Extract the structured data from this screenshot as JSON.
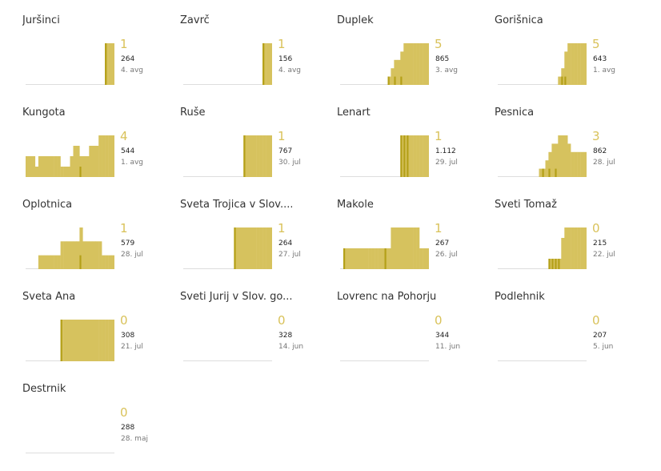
{
  "colors": {
    "bar_light": "#d6c25e",
    "bar_dark": "#b4a018",
    "baseline": "#dddddd",
    "accent_text": "#d9c25a"
  },
  "chart_data": [
    {
      "type": "bar",
      "title": "Juršinci",
      "active": 1,
      "total": 264,
      "date": "4. avg",
      "values_total": [
        0,
        0,
        0,
        0,
        0,
        0,
        0,
        0,
        0,
        0,
        0,
        0,
        0,
        0,
        0,
        0,
        0,
        0,
        0,
        0,
        0,
        0,
        0,
        0,
        0,
        1,
        1,
        1
      ],
      "values_active": [
        0,
        0,
        0,
        0,
        0,
        0,
        0,
        0,
        0,
        0,
        0,
        0,
        0,
        0,
        0,
        0,
        0,
        0,
        0,
        0,
        0,
        0,
        0,
        0,
        0,
        1,
        0,
        0
      ]
    },
    {
      "type": "bar",
      "title": "Zavrč",
      "active": 1,
      "total": 156,
      "date": "4. avg",
      "values_total": [
        0,
        0,
        0,
        0,
        0,
        0,
        0,
        0,
        0,
        0,
        0,
        0,
        0,
        0,
        0,
        0,
        0,
        0,
        0,
        0,
        0,
        0,
        0,
        0,
        0,
        1,
        1,
        1
      ],
      "values_active": [
        0,
        0,
        0,
        0,
        0,
        0,
        0,
        0,
        0,
        0,
        0,
        0,
        0,
        0,
        0,
        0,
        0,
        0,
        0,
        0,
        0,
        0,
        0,
        0,
        1,
        1,
        0,
        0
      ]
    },
    {
      "type": "bar",
      "title": "Duplek",
      "active": 5,
      "total": 865,
      "date": "3. avg",
      "values_total": [
        0,
        0,
        0,
        0,
        0,
        0,
        0,
        0,
        0,
        0,
        0,
        0,
        0,
        0,
        0,
        1,
        2,
        3,
        3,
        4,
        5,
        5,
        5,
        5,
        5,
        5,
        5,
        5
      ],
      "values_active": [
        0,
        0,
        0,
        0,
        0,
        0,
        0,
        0,
        0,
        0,
        0,
        0,
        0,
        0,
        0,
        1,
        0,
        1,
        0,
        1,
        0,
        0,
        0,
        0,
        0,
        0,
        0,
        0
      ]
    },
    {
      "type": "bar",
      "title": "Gorišnica",
      "active": 5,
      "total": 643,
      "date": "1. avg",
      "values_total": [
        0,
        0,
        0,
        0,
        0,
        0,
        0,
        0,
        0,
        0,
        0,
        0,
        0,
        0,
        0,
        0,
        0,
        0,
        0,
        1,
        2,
        4,
        5,
        5,
        5,
        5,
        5,
        5
      ],
      "values_active": [
        0,
        0,
        0,
        0,
        0,
        0,
        0,
        0,
        0,
        0,
        0,
        0,
        0,
        0,
        0,
        0,
        0,
        0,
        0,
        0,
        1,
        1,
        0,
        0,
        0,
        0,
        0,
        0
      ]
    },
    {
      "type": "bar",
      "title": "Kungota",
      "active": 4,
      "total": 544,
      "date": "1. avg",
      "values_total": [
        2,
        2,
        2,
        1,
        2,
        2,
        2,
        2,
        2,
        2,
        2,
        1,
        1,
        1,
        2,
        3,
        3,
        2,
        2,
        2,
        3,
        3,
        3,
        4,
        4,
        4,
        4,
        4
      ],
      "values_active": [
        0,
        0,
        0,
        0,
        0,
        0,
        0,
        0,
        0,
        0,
        0,
        0,
        0,
        0,
        0,
        0,
        0,
        1,
        0,
        0,
        0,
        0,
        0,
        0,
        0,
        0,
        0,
        0
      ]
    },
    {
      "type": "bar",
      "title": "Ruše",
      "active": 1,
      "total": 767,
      "date": "30. jul",
      "values_total": [
        0,
        0,
        0,
        0,
        0,
        0,
        0,
        0,
        0,
        0,
        0,
        0,
        0,
        0,
        0,
        0,
        0,
        0,
        0,
        1,
        1,
        1,
        1,
        1,
        1,
        1,
        1,
        1
      ],
      "values_active": [
        0,
        0,
        0,
        0,
        0,
        0,
        0,
        0,
        0,
        0,
        0,
        0,
        0,
        0,
        0,
        0,
        0,
        0,
        0,
        1,
        0,
        0,
        0,
        0,
        0,
        0,
        0,
        0
      ]
    },
    {
      "type": "bar",
      "title": "Lenart",
      "active": 1,
      "total": "1.112",
      "date": "29. jul",
      "values_total": [
        0,
        0,
        0,
        0,
        0,
        0,
        0,
        0,
        0,
        0,
        0,
        0,
        0,
        0,
        0,
        0,
        0,
        0,
        0,
        1,
        1,
        1,
        1,
        1,
        1,
        1,
        1,
        1
      ],
      "values_active": [
        0,
        0,
        0,
        0,
        0,
        0,
        0,
        0,
        0,
        0,
        0,
        0,
        0,
        0,
        0,
        0,
        0,
        0,
        0,
        1,
        1,
        1,
        0,
        0,
        0,
        0,
        0,
        0
      ]
    },
    {
      "type": "bar",
      "title": "Pesnica",
      "active": 3,
      "total": 862,
      "date": "28. jul",
      "values_total": [
        0,
        0,
        0,
        0,
        0,
        0,
        0,
        0,
        0,
        0,
        0,
        0,
        0,
        1,
        1,
        2,
        3,
        4,
        4,
        5,
        5,
        5,
        4,
        3,
        3,
        3,
        3,
        3
      ],
      "values_active": [
        0,
        0,
        0,
        0,
        0,
        0,
        0,
        0,
        0,
        0,
        0,
        0,
        0,
        0,
        1,
        0,
        1,
        0,
        1,
        0,
        0,
        0,
        0,
        0,
        0,
        0,
        0,
        0
      ]
    },
    {
      "type": "bar",
      "title": "Oplotnica",
      "active": 1,
      "total": 579,
      "date": "28. jul",
      "values_total": [
        0,
        0,
        0,
        0,
        1,
        1,
        1,
        1,
        1,
        1,
        1,
        2,
        2,
        2,
        2,
        2,
        2,
        3,
        2,
        2,
        2,
        2,
        2,
        2,
        1,
        1,
        1,
        1
      ],
      "values_active": [
        0,
        0,
        0,
        0,
        0,
        0,
        0,
        0,
        0,
        0,
        0,
        0,
        0,
        0,
        0,
        0,
        0,
        1,
        0,
        0,
        0,
        0,
        0,
        0,
        0,
        0,
        0,
        0
      ]
    },
    {
      "type": "bar",
      "title": "Sveta Trojica v Slov....",
      "active": 1,
      "total": 264,
      "date": "27. jul",
      "values_total": [
        0,
        0,
        0,
        0,
        0,
        0,
        0,
        0,
        0,
        0,
        0,
        0,
        0,
        0,
        0,
        0,
        1,
        1,
        1,
        1,
        1,
        1,
        1,
        1,
        1,
        1,
        1,
        1
      ],
      "values_active": [
        0,
        0,
        0,
        0,
        0,
        0,
        0,
        0,
        0,
        0,
        0,
        0,
        0,
        0,
        0,
        0,
        1,
        0,
        0,
        0,
        0,
        0,
        0,
        0,
        0,
        0,
        0,
        0
      ]
    },
    {
      "type": "bar",
      "title": "Makole",
      "active": 1,
      "total": 267,
      "date": "26. jul",
      "values_total": [
        0,
        1,
        1,
        1,
        1,
        1,
        1,
        1,
        1,
        1,
        1,
        1,
        1,
        1,
        1,
        1,
        2,
        2,
        2,
        2,
        2,
        2,
        2,
        2,
        2,
        1,
        1,
        1
      ],
      "values_active": [
        0,
        1,
        0,
        0,
        0,
        0,
        0,
        0,
        0,
        0,
        0,
        0,
        0,
        0,
        1,
        0,
        0,
        0,
        0,
        0,
        0,
        0,
        0,
        0,
        0,
        0,
        0,
        0
      ]
    },
    {
      "type": "bar",
      "title": "Sveti Tomaž",
      "active": 0,
      "total": 215,
      "date": "22. jul",
      "values_total": [
        0,
        0,
        0,
        0,
        0,
        0,
        0,
        0,
        0,
        0,
        0,
        0,
        0,
        0,
        0,
        0,
        1,
        1,
        1,
        1,
        3,
        4,
        4,
        4,
        4,
        4,
        4,
        4
      ],
      "values_active": [
        0,
        0,
        0,
        0,
        0,
        0,
        0,
        0,
        0,
        0,
        0,
        0,
        0,
        0,
        0,
        0,
        1,
        1,
        1,
        1,
        0,
        0,
        0,
        0,
        0,
        0,
        0,
        0
      ]
    },
    {
      "type": "bar",
      "title": "Sveta Ana",
      "active": 0,
      "total": 308,
      "date": "21. jul",
      "values_total": [
        0,
        0,
        0,
        0,
        0,
        0,
        0,
        0,
        0,
        0,
        0,
        1,
        1,
        1,
        1,
        1,
        1,
        1,
        1,
        1,
        1,
        1,
        1,
        1,
        1,
        1,
        1,
        1
      ],
      "values_active": [
        0,
        0,
        0,
        0,
        0,
        0,
        0,
        0,
        0,
        0,
        0,
        1,
        0,
        0,
        0,
        0,
        0,
        0,
        0,
        0,
        0,
        0,
        0,
        0,
        0,
        0,
        0,
        0
      ]
    },
    {
      "type": "bar",
      "title": "Sveti Jurij v Slov. go...",
      "active": 0,
      "total": 328,
      "date": "14. jun",
      "values_total": [],
      "values_active": []
    },
    {
      "type": "bar",
      "title": "Lovrenc na Pohorju",
      "active": 0,
      "total": 344,
      "date": "11. jun",
      "values_total": [],
      "values_active": []
    },
    {
      "type": "bar",
      "title": "Podlehnik",
      "active": 0,
      "total": 207,
      "date": "5. jun",
      "values_total": [],
      "values_active": []
    },
    {
      "type": "bar",
      "title": "Destrnik",
      "active": 0,
      "total": 288,
      "date": "28. maj",
      "values_total": [],
      "values_active": []
    }
  ]
}
